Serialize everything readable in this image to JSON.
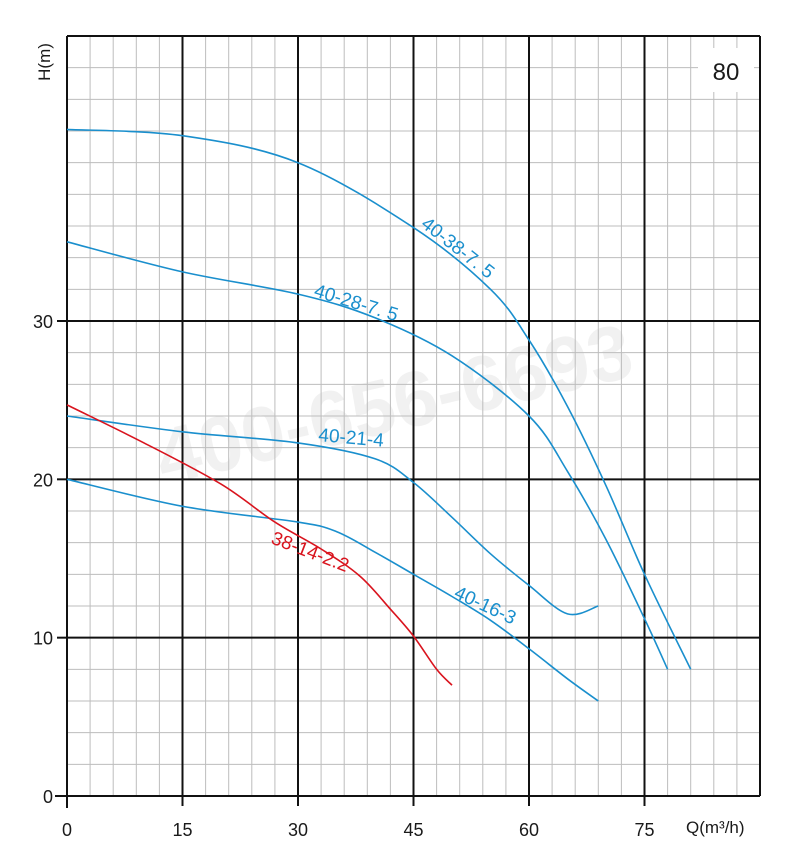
{
  "chart_data": {
    "type": "line",
    "badge": "80",
    "watermark": "400-656-6693",
    "xlabel": "Q(m³/h)",
    "ylabel": "H(m)",
    "xlim": [
      0,
      90
    ],
    "ylim": [
      0,
      48
    ],
    "xticks": [
      0,
      15,
      30,
      45,
      60,
      75
    ],
    "yticks": [
      0,
      10,
      20,
      30
    ],
    "minor_grid": {
      "x_step": 3,
      "y_step": 2
    },
    "grid": true,
    "colors": {
      "blue": "#1a8fcd",
      "red": "#d9141e",
      "major_grid": "#111111",
      "minor_grid": "#bdbdbd"
    },
    "series": [
      {
        "name": "40-38-7. 5",
        "color": "#1a8fcd",
        "x": [
          0,
          15,
          30,
          45,
          55,
          60,
          65,
          70,
          75,
          81
        ],
        "y": [
          42.1,
          41.7,
          40,
          35.9,
          32.0,
          28.8,
          24.6,
          19.6,
          14.0,
          8.0
        ]
      },
      {
        "name": "40-28-7. 5",
        "color": "#1a8fcd",
        "x": [
          0,
          15,
          30,
          40,
          50,
          60,
          65,
          70,
          75,
          78
        ],
        "y": [
          35,
          33.1,
          31.7,
          30.2,
          27.8,
          24.0,
          20.5,
          16.2,
          11.2,
          8.0
        ]
      },
      {
        "name": "40-21-4",
        "color": "#1a8fcd",
        "x": [
          0,
          15,
          30,
          40,
          45,
          50,
          55,
          60,
          65,
          69
        ],
        "y": [
          24.0,
          23.0,
          22.3,
          21.3,
          19.8,
          17.6,
          15.3,
          13.3,
          11.5,
          12.0
        ]
      },
      {
        "name": "40-16-3",
        "color": "#1a8fcd",
        "x": [
          0,
          15,
          30,
          35,
          40,
          45,
          50,
          55,
          60,
          65,
          69
        ],
        "y": [
          20,
          18.3,
          17.3,
          16.7,
          15.4,
          14.0,
          12.6,
          11.1,
          9.3,
          7.4,
          6.0
        ]
      },
      {
        "name": "38-14-2.2",
        "color": "#d9141e",
        "x": [
          0,
          10,
          20,
          27,
          33,
          38,
          42,
          45,
          48,
          50
        ],
        "y": [
          24.7,
          22.3,
          19.7,
          17.3,
          15.6,
          13.9,
          11.8,
          10.1,
          8.0,
          7.0
        ]
      }
    ]
  }
}
